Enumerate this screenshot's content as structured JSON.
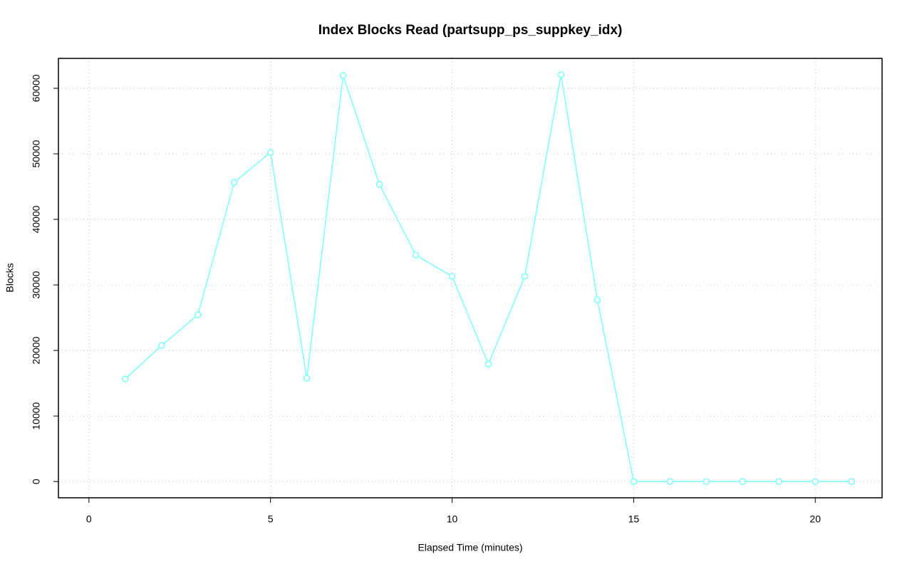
{
  "chart_data": {
    "type": "line",
    "title": "Index Blocks Read (partsupp_ps_suppkey_idx)",
    "x_label": "Elapsed Time (minutes)",
    "y_label": "Blocks",
    "x": [
      1,
      2,
      3,
      4,
      5,
      6,
      7,
      8,
      9,
      10,
      11,
      12,
      13,
      14,
      15,
      16,
      17,
      18,
      19,
      20,
      21
    ],
    "series": [
      {
        "color": "#80ffff",
        "values": [
          15650,
          20760,
          25430,
          45650,
          50220,
          15760,
          61960,
          45330,
          34570,
          31300,
          17930,
          31300,
          62070,
          27720,
          0,
          0,
          0,
          0,
          0,
          0,
          0
        ]
      }
    ],
    "xlim": [
      -0.84,
      21.84
    ],
    "xticks": [
      0,
      5,
      10,
      15,
      20
    ],
    "ylim": [
      -2480,
      64560
    ],
    "yticks": [
      0,
      10000,
      20000,
      30000,
      40000,
      50000,
      60000
    ],
    "grid": true
  }
}
